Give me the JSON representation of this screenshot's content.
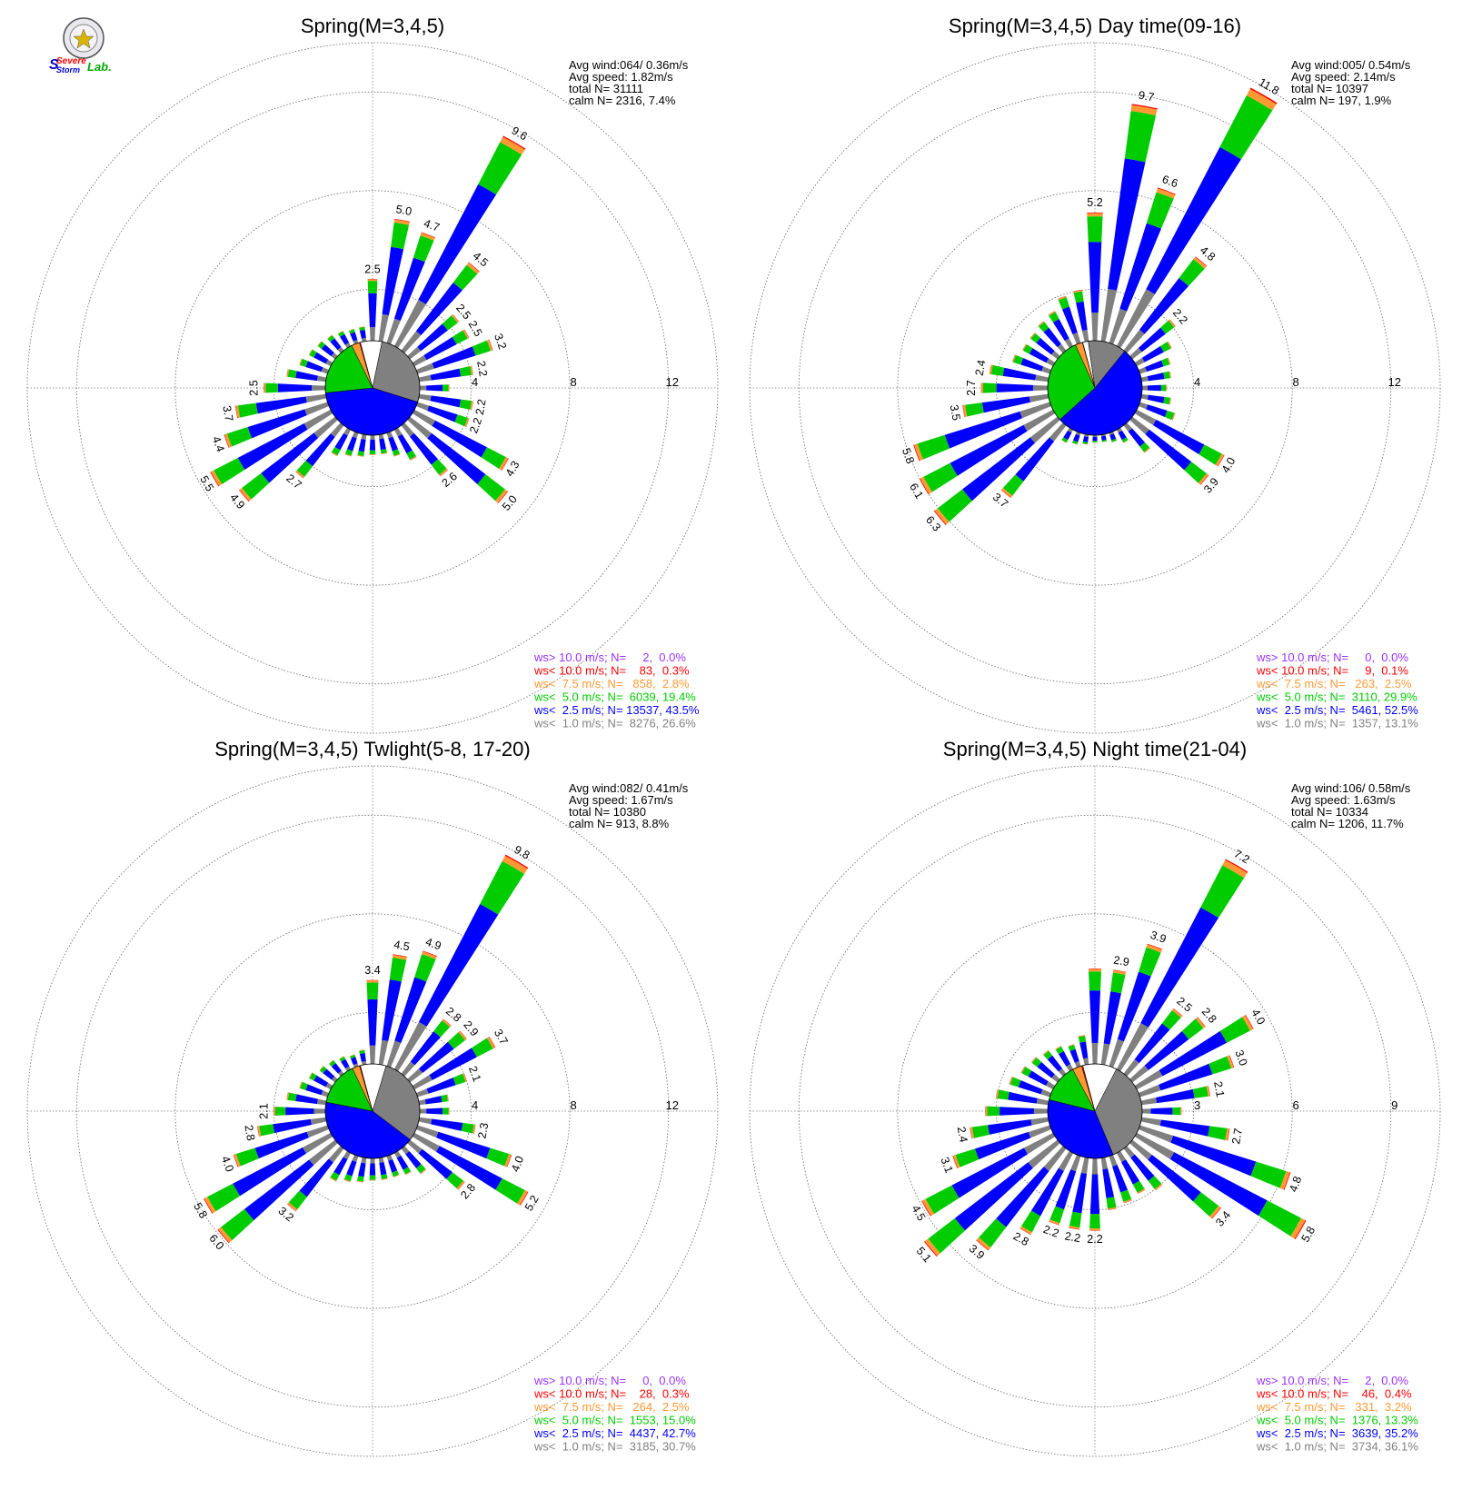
{
  "logo": {
    "line1": "Severe",
    "line2": "Storm",
    "line3": "Lab."
  },
  "legend_colors": {
    "gt10": "#9933ff",
    "lt10": "#ff0000",
    "lt7_5": "#ff9933",
    "lt5": "#00cc00",
    "lt2_5": "#0000ff",
    "lt1": "#808080",
    "calm": "#ffffff"
  },
  "chart_data": [
    {
      "type": "polar-bar",
      "title": "Spring(M=3,4,5)",
      "stats": {
        "line1": "Avg wind:064/ 0.36m/s",
        "line2": "Avg speed: 1.82m/s",
        "line3": "total N=       31111",
        "line4": "calm N=   2316,   7.4%"
      },
      "rings": [
        "4",
        "8",
        "12"
      ],
      "rmax": 14,
      "pie": [
        {
          "name": "calm",
          "value": 7.4
        },
        {
          "name": "lt1",
          "value": 26.6
        },
        {
          "name": "lt2_5",
          "value": 43.5
        },
        {
          "name": "lt5",
          "value": 19.4
        },
        {
          "name": "lt7_5",
          "value": 2.8
        },
        {
          "name": "lt10",
          "value": 0.3
        },
        {
          "name": "gt10",
          "value": 0.0
        }
      ],
      "directions_deg": [
        0,
        10,
        20,
        30,
        40,
        50,
        60,
        70,
        80,
        90,
        100,
        110,
        120,
        130,
        140,
        150,
        160,
        170,
        180,
        190,
        200,
        210,
        220,
        230,
        240,
        250,
        260,
        270,
        280,
        290,
        300,
        310,
        320,
        330,
        340,
        350
      ],
      "totals": [
        2.5,
        5.0,
        4.7,
        9.6,
        4.5,
        2.5,
        2.5,
        3.2,
        2.2,
        1.2,
        2.2,
        2.2,
        4.3,
        5.0,
        2.6,
        1.4,
        1.0,
        0.8,
        0.8,
        0.9,
        1.0,
        1.2,
        2.7,
        4.9,
        5.5,
        4.4,
        3.7,
        2.5,
        1.6,
        1.2,
        1.0,
        0.9,
        0.8,
        0.7,
        0.6,
        0.6
      ],
      "labels": [
        "2.5",
        "5.0",
        "4.7",
        "9.6",
        "4.5",
        "2.5",
        "2.5",
        "3.2",
        "2.2",
        "",
        "2.2",
        "2.2",
        "4.3",
        "5.0",
        "2.6",
        "",
        "",
        "",
        "",
        "",
        "",
        "",
        "2.7",
        "4.9",
        "5.5",
        "4.4",
        "3.7",
        "2.5",
        "",
        "",
        "",
        "",
        "",
        "",
        "",
        ""
      ],
      "legend": [
        {
          "cls": "gt10",
          "text": "ws> 10.0 m/s; N=     2,  0.0%"
        },
        {
          "cls": "lt10",
          "text": "ws< 10.0 m/s; N=    83,  0.3%"
        },
        {
          "cls": "lt7_5",
          "text": "ws<  7.5 m/s; N=   858,  2.8%"
        },
        {
          "cls": "lt5",
          "text": "ws<  5.0 m/s; N=  6039, 19.4%"
        },
        {
          "cls": "lt2_5",
          "text": "ws<  2.5 m/s; N= 13537, 43.5%"
        },
        {
          "cls": "lt1",
          "text": "ws<  1.0 m/s; N=  8276, 26.6%"
        }
      ]
    },
    {
      "type": "polar-bar",
      "title": "Spring(M=3,4,5) Day time(09-16)",
      "stats": {
        "line1": "Avg wind:005/ 0.54m/s",
        "line2": "Avg speed: 2.14m/s",
        "line3": "total N=       10397",
        "line4": "calm N=    197,   1.9%"
      },
      "rings": [
        "4",
        "8",
        "12"
      ],
      "rmax": 14,
      "pie": [
        {
          "name": "calm",
          "value": 1.9
        },
        {
          "name": "lt1",
          "value": 13.1
        },
        {
          "name": "lt2_5",
          "value": 52.5
        },
        {
          "name": "lt5",
          "value": 29.9
        },
        {
          "name": "lt7_5",
          "value": 2.5
        },
        {
          "name": "lt10",
          "value": 0.1
        },
        {
          "name": "gt10",
          "value": 0.0
        }
      ],
      "directions_deg": [
        0,
        10,
        20,
        30,
        40,
        50,
        60,
        70,
        80,
        90,
        100,
        110,
        120,
        130,
        140,
        150,
        160,
        170,
        180,
        190,
        200,
        210,
        220,
        230,
        240,
        250,
        260,
        270,
        280,
        290,
        300,
        310,
        320,
        330,
        340,
        350
      ],
      "totals": [
        5.2,
        9.7,
        6.6,
        11.8,
        4.8,
        2.2,
        1.6,
        1.3,
        1.2,
        1.0,
        1.2,
        1.5,
        4.0,
        3.9,
        1.4,
        0.6,
        0.4,
        0.3,
        0.3,
        0.4,
        0.5,
        0.6,
        3.7,
        6.3,
        6.1,
        5.8,
        3.5,
        2.7,
        2.4,
        1.6,
        1.4,
        1.4,
        1.5,
        1.6,
        2.0,
        2.1
      ],
      "labels": [
        "5.2",
        "9.7",
        "6.6",
        "11.8",
        "4.8",
        "2.2",
        "",
        "",
        "",
        "",
        "",
        "",
        "4.0",
        "3.9",
        "",
        "",
        "",
        "",
        "",
        "",
        "",
        "",
        "3.7",
        "6.3",
        "6.1",
        "5.8",
        "3.5",
        "2.7",
        "2.4",
        "",
        "",
        "",
        "",
        "",
        "",
        ""
      ],
      "legend": [
        {
          "cls": "gt10",
          "text": "ws> 10.0 m/s; N=     0,  0.0%"
        },
        {
          "cls": "lt10",
          "text": "ws< 10.0 m/s; N=     9,  0.1%"
        },
        {
          "cls": "lt7_5",
          "text": "ws<  7.5 m/s; N=   263,  2.5%"
        },
        {
          "cls": "lt5",
          "text": "ws<  5.0 m/s; N=  3110, 29.9%"
        },
        {
          "cls": "lt2_5",
          "text": "ws<  2.5 m/s; N=  5461, 52.5%"
        },
        {
          "cls": "lt1",
          "text": "ws<  1.0 m/s; N=  1357, 13.1%"
        }
      ]
    },
    {
      "type": "polar-bar",
      "title": "Spring(M=3,4,5) Twlight(5-8, 17-20)",
      "stats": {
        "line1": "Avg wind:082/ 0.41m/s",
        "line2": "Avg speed: 1.67m/s",
        "line3": "total N=       10380",
        "line4": "calm N=    913,   8.8%"
      },
      "rings": [
        "4",
        "8",
        "12"
      ],
      "rmax": 14,
      "pie": [
        {
          "name": "calm",
          "value": 8.8
        },
        {
          "name": "lt1",
          "value": 30.7
        },
        {
          "name": "lt2_5",
          "value": 42.7
        },
        {
          "name": "lt5",
          "value": 15.0
        },
        {
          "name": "lt7_5",
          "value": 2.5
        },
        {
          "name": "lt10",
          "value": 0.3
        },
        {
          "name": "gt10",
          "value": 0.0
        }
      ],
      "directions_deg": [
        0,
        10,
        20,
        30,
        40,
        50,
        60,
        70,
        80,
        90,
        100,
        110,
        120,
        130,
        140,
        150,
        160,
        170,
        180,
        190,
        200,
        210,
        220,
        230,
        240,
        250,
        260,
        270,
        280,
        290,
        300,
        310,
        320,
        330,
        340,
        350
      ],
      "totals": [
        3.4,
        4.5,
        4.9,
        9.8,
        2.8,
        2.9,
        3.7,
        2.1,
        1.2,
        1.2,
        2.3,
        4.0,
        5.2,
        2.8,
        1.3,
        1.0,
        0.9,
        0.9,
        0.9,
        1.0,
        1.1,
        1.3,
        3.2,
        6.0,
        5.8,
        4.0,
        2.8,
        2.1,
        1.6,
        1.2,
        1.0,
        0.8,
        0.7,
        0.6,
        0.5,
        0.6
      ],
      "labels": [
        "3.4",
        "4.5",
        "4.9",
        "9.8",
        "2.8",
        "2.9",
        "3.7",
        "2.1",
        "",
        "",
        "2.3",
        "4.0",
        "5.2",
        "2.8",
        "",
        "",
        "",
        "",
        "",
        "",
        "",
        "",
        "3.2",
        "6.0",
        "5.8",
        "4.0",
        "2.8",
        "2.1",
        "",
        "",
        "",
        "",
        "",
        "",
        "",
        ""
      ],
      "legend": [
        {
          "cls": "gt10",
          "text": "ws> 10.0 m/s; N=     0,  0.0%"
        },
        {
          "cls": "lt10",
          "text": "ws< 10.0 m/s; N=    28,  0.3%"
        },
        {
          "cls": "lt7_5",
          "text": "ws<  7.5 m/s; N=   264,  2.5%"
        },
        {
          "cls": "lt5",
          "text": "ws<  5.0 m/s; N=  1553, 15.0%"
        },
        {
          "cls": "lt2_5",
          "text": "ws<  2.5 m/s; N=  4437, 42.7%"
        },
        {
          "cls": "lt1",
          "text": "ws<  1.0 m/s; N=  3185, 30.7%"
        }
      ]
    },
    {
      "type": "polar-bar",
      "title": "Spring(M=3,4,5) Night time(21-04)",
      "stats": {
        "line1": "Avg wind:106/ 0.58m/s",
        "line2": "Avg speed: 1.63m/s",
        "line3": "total N=       10334",
        "line4": "calm N=   1206,  11.7%"
      },
      "rings": [
        "3",
        "6",
        "9"
      ],
      "rmax": 10.5,
      "pie": [
        {
          "name": "calm",
          "value": 11.7
        },
        {
          "name": "lt1",
          "value": 36.1
        },
        {
          "name": "lt2_5",
          "value": 35.2
        },
        {
          "name": "lt5",
          "value": 13.3
        },
        {
          "name": "lt7_5",
          "value": 3.2
        },
        {
          "name": "lt10",
          "value": 0.4
        },
        {
          "name": "gt10",
          "value": 0.0
        }
      ],
      "directions_deg": [
        0,
        10,
        20,
        30,
        40,
        50,
        60,
        70,
        80,
        90,
        100,
        110,
        120,
        130,
        140,
        150,
        160,
        170,
        180,
        190,
        200,
        210,
        220,
        230,
        240,
        250,
        260,
        270,
        280,
        290,
        300,
        310,
        320,
        330,
        340,
        350
      ],
      "totals": [
        2.9,
        2.9,
        3.9,
        7.2,
        2.5,
        2.8,
        4.0,
        3.0,
        2.1,
        1.2,
        2.7,
        4.8,
        5.8,
        3.4,
        1.6,
        1.4,
        1.5,
        1.6,
        2.2,
        2.2,
        2.2,
        2.8,
        3.9,
        5.1,
        4.5,
        3.1,
        2.4,
        1.9,
        1.6,
        1.3,
        1.1,
        1.0,
        0.9,
        0.8,
        0.7,
        0.9
      ],
      "labels": [
        "",
        "2.9",
        "3.9",
        "7.2",
        "2.5",
        "2.8",
        "4.0",
        "3.0",
        "2.1",
        "",
        "2.7",
        "4.8",
        "5.8",
        "3.4",
        "",
        "",
        "",
        "",
        "2.2",
        "2.2",
        "2.2",
        "2.8",
        "3.9",
        "5.1",
        "4.5",
        "3.1",
        "2.4",
        "",
        "",
        "",
        "",
        "",
        "",
        "",
        "",
        ""
      ],
      "legend": [
        {
          "cls": "gt10",
          "text": "ws> 10.0 m/s; N=     2,  0.0%"
        },
        {
          "cls": "lt10",
          "text": "ws< 10.0 m/s; N=    46,  0.4%"
        },
        {
          "cls": "lt7_5",
          "text": "ws<  7.5 m/s; N=   331,  3.2%"
        },
        {
          "cls": "lt5",
          "text": "ws<  5.0 m/s; N=  1376, 13.3%"
        },
        {
          "cls": "lt2_5",
          "text": "ws<  2.5 m/s; N=  3639, 35.2%"
        },
        {
          "cls": "lt1",
          "text": "ws<  1.0 m/s; N=  3734, 36.1%"
        }
      ]
    }
  ]
}
